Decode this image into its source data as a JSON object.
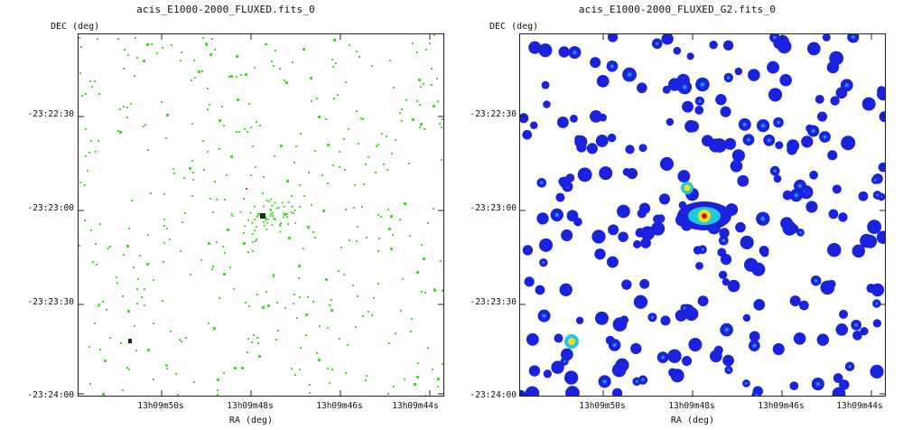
{
  "panels": [
    {
      "title": "acis_E1000-2000_FLUXED.fits_0",
      "y_axis_label": "DEC (deg)",
      "x_axis_label": "RA (deg)",
      "y_ticks": [
        "-23:22:30",
        "-23:23:00",
        "-23:23:30",
        "-23:24:00"
      ],
      "x_ticks": [
        "13h09m50s",
        "13h09m48s",
        "13h09m46s",
        "13h09m44s"
      ],
      "render_style": "sparse-green-pixels"
    },
    {
      "title": "acis_E1000-2000_FLUXED_G2.fits_0",
      "y_axis_label": "DEC (deg)",
      "x_axis_label": "RA (deg)",
      "y_ticks": [
        "-23:22:30",
        "-23:23:00",
        "-23:23:30",
        "-23:24:00"
      ],
      "x_ticks": [
        "13h09m50s",
        "13h09m48s",
        "13h09m46s",
        "13h09m44s"
      ],
      "render_style": "smoothed-blue-blobs"
    }
  ],
  "colors": {
    "pixel_green": "#44dd22",
    "blob_blue": "#1a22dd",
    "blob_cyan": "#22c8e0",
    "source_yellow": "#f0e020",
    "source_red": "#d01010",
    "axis": "#222222"
  }
}
